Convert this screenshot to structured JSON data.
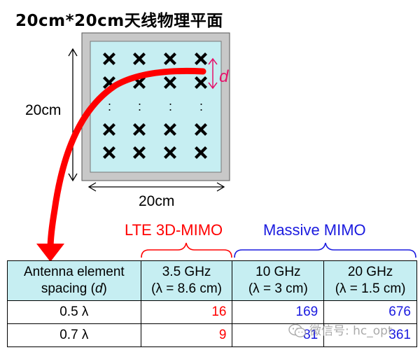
{
  "title": "20cm*20cm天线物理平面",
  "antenna_panel": {
    "side_label": "20cm",
    "bottom_label": "20cm",
    "spacing_symbol": "d",
    "element_glyph": "×",
    "ellipsis_glyph": ":"
  },
  "groups": {
    "lte": "LTE 3D-MIMO",
    "massive": "Massive MIMO"
  },
  "table": {
    "header": {
      "col0_line1": "Antenna element",
      "col0_line2": "spacing (",
      "col0_d": "d",
      "col0_tail": ")",
      "col1_line1": "3.5 GHz",
      "col1_line2": "(λ = 8.6 cm)",
      "col2_line1": "10 GHz",
      "col2_line2": "(λ = 3 cm)",
      "col3_line1": "20 GHz",
      "col3_line2": "(λ = 1.5 cm)"
    },
    "rows": [
      {
        "label": "0.5 λ",
        "v35": "16",
        "v10": "169",
        "v20": "676"
      },
      {
        "label": "0.7 λ",
        "v35": "9",
        "v10": "81",
        "v20": "361"
      }
    ]
  },
  "watermark": "微信号: hc_opt",
  "colors": {
    "lte": "#ff0000",
    "massive": "#1a1adf",
    "arrow": "#ff0000",
    "d_marker": "#e6106a",
    "panel_fill": "#c6eef2",
    "panel_frame": "#c8c8c8"
  }
}
